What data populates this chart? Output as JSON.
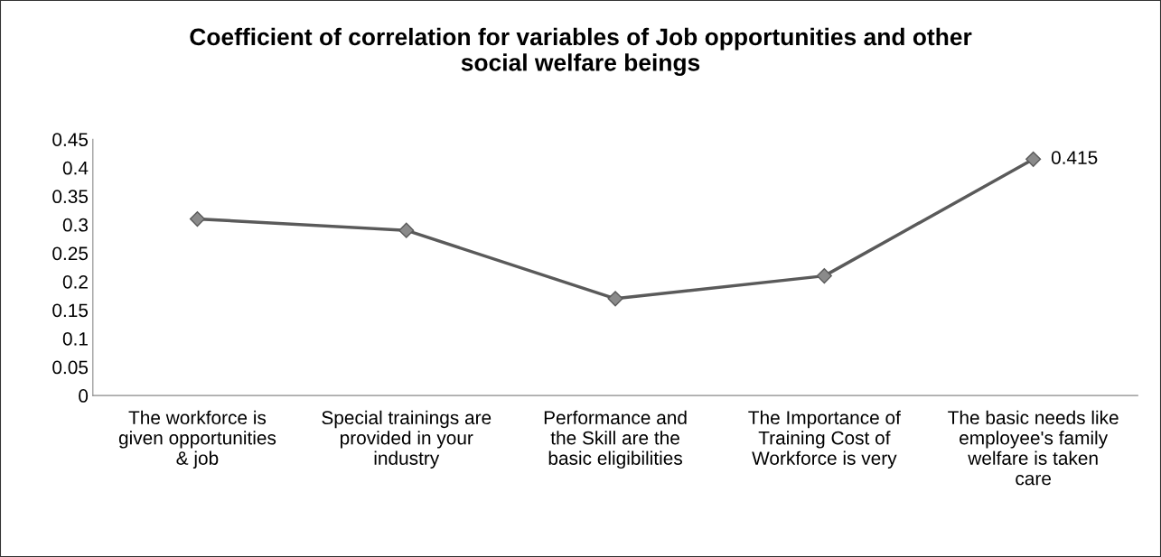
{
  "chart_data": {
    "type": "line",
    "title": "Coefficient of correlation for variables of Job opportunities and other\nsocial welfare beings",
    "categories": [
      "The workforce is\ngiven opportunities\n& job",
      "Special trainings are\nprovided in your\nindustry",
      "Performance and\nthe Skill are the\nbasic eligibilities",
      "The Importance of\nTraining Cost of\nWorkforce is very",
      "The basic needs like\nemployee's family\nwelfare is taken\ncare"
    ],
    "series": [
      {
        "color": "#5a5a5a",
        "values": [
          0.31,
          0.29,
          0.17,
          0.21,
          0.415
        ],
        "value_labels": [
          null,
          null,
          null,
          null,
          "0.415"
        ]
      }
    ],
    "ylim": [
      0,
      0.45
    ],
    "yticks": [
      0,
      0.05,
      0.1,
      0.15,
      0.2,
      0.25,
      0.3,
      0.35,
      0.4,
      0.45
    ],
    "marker": "diamond",
    "line_style": "solid",
    "grid": false,
    "legend": false
  }
}
